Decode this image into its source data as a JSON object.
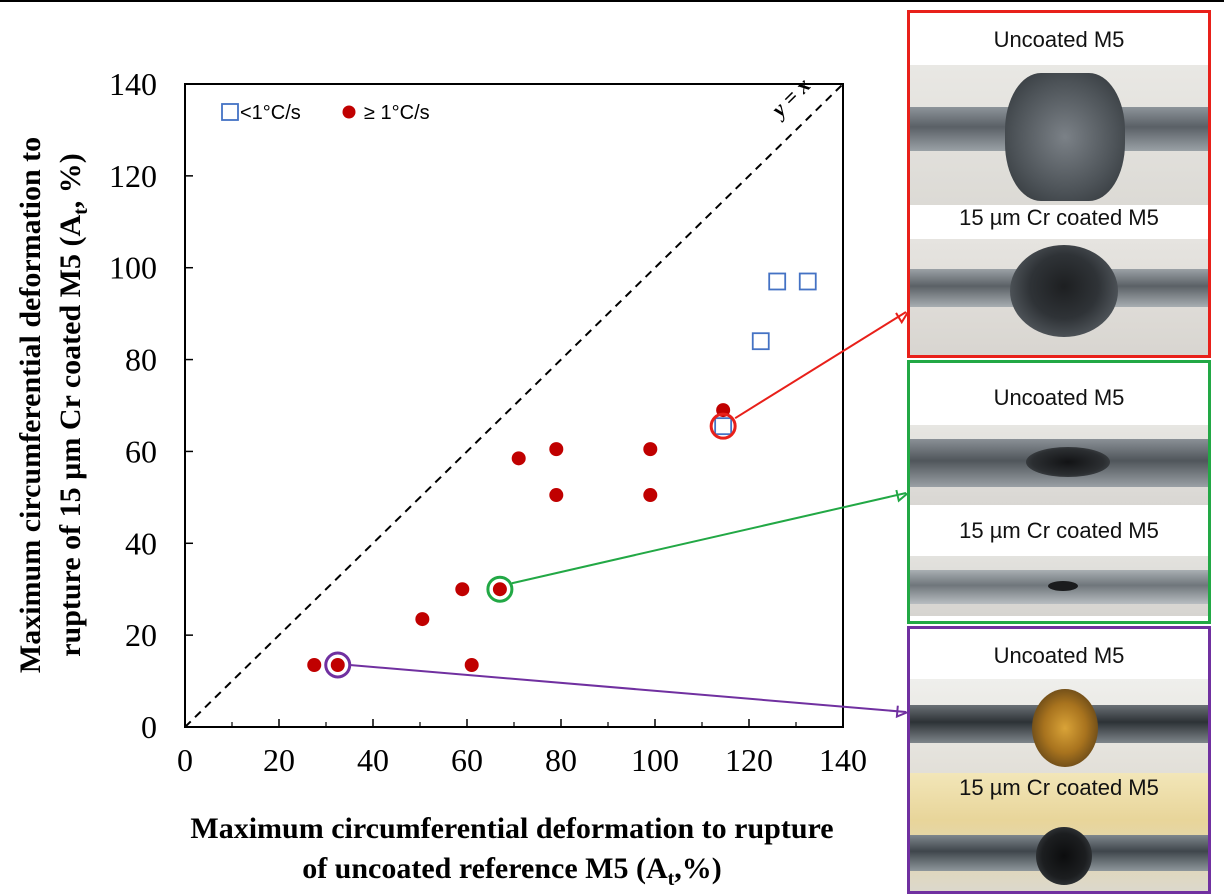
{
  "chart_data": {
    "type": "scatter",
    "xlabel_line1": "Maximum circumferential deformation to rupture",
    "xlabel_line2": "of uncoated reference M5 (A",
    "xlabel_sub": "t",
    "xlabel_end": ",%)",
    "ylabel_line1": "Maximum circumferential deformation to",
    "ylabel_line2": "rupture of 15 µm Cr coated M5 (A",
    "ylabel_sub": "t",
    "ylabel_end": ", %)",
    "xlim": [
      0,
      140
    ],
    "ylim": [
      0,
      140
    ],
    "xticks": [
      "0",
      "20",
      "40",
      "60",
      "80",
      "100",
      "120",
      "140"
    ],
    "yticks": [
      "0",
      "20",
      "40",
      "60",
      "80",
      "100",
      "120",
      "140"
    ],
    "grid": false,
    "legend_position": "top-left",
    "reference_line": {
      "label": "y = x",
      "slope": 1
    },
    "series": [
      {
        "name": "<1°C/s",
        "marker": "open-square",
        "color": "#4472c4",
        "points": [
          [
            114.5,
            65.5
          ],
          [
            122.5,
            84
          ],
          [
            126,
            97
          ],
          [
            132.5,
            97
          ]
        ]
      },
      {
        "name": "≥ 1°C/s",
        "marker": "filled-circle",
        "color": "#c00000",
        "points": [
          [
            27.5,
            13.5
          ],
          [
            32.5,
            13.5
          ],
          [
            50.5,
            23.5
          ],
          [
            59,
            30
          ],
          [
            61,
            13.5
          ],
          [
            67,
            30
          ],
          [
            71,
            58.5
          ],
          [
            79,
            60.5
          ],
          [
            79,
            50.5
          ],
          [
            99,
            60.5
          ],
          [
            99,
            50.5
          ],
          [
            114.5,
            69
          ]
        ]
      }
    ],
    "highlights": [
      {
        "x": 114.5,
        "y": 65.5,
        "color": "#e8201a",
        "panel": 0
      },
      {
        "x": 67,
        "y": 30,
        "color": "#22a845",
        "panel": 1
      },
      {
        "x": 32.5,
        "y": 13.5,
        "color": "#7030a0",
        "panel": 2
      }
    ]
  },
  "panels": [
    {
      "border_color": "#e8201a",
      "top_label": "Uncoated M5",
      "bottom_label": "15 µm Cr coated M5"
    },
    {
      "border_color": "#22a845",
      "top_label": "Uncoated M5",
      "bottom_label": "15 µm Cr coated M5"
    },
    {
      "border_color": "#7030a0",
      "top_label": "Uncoated M5",
      "bottom_label": "15 µm Cr coated M5"
    }
  ]
}
